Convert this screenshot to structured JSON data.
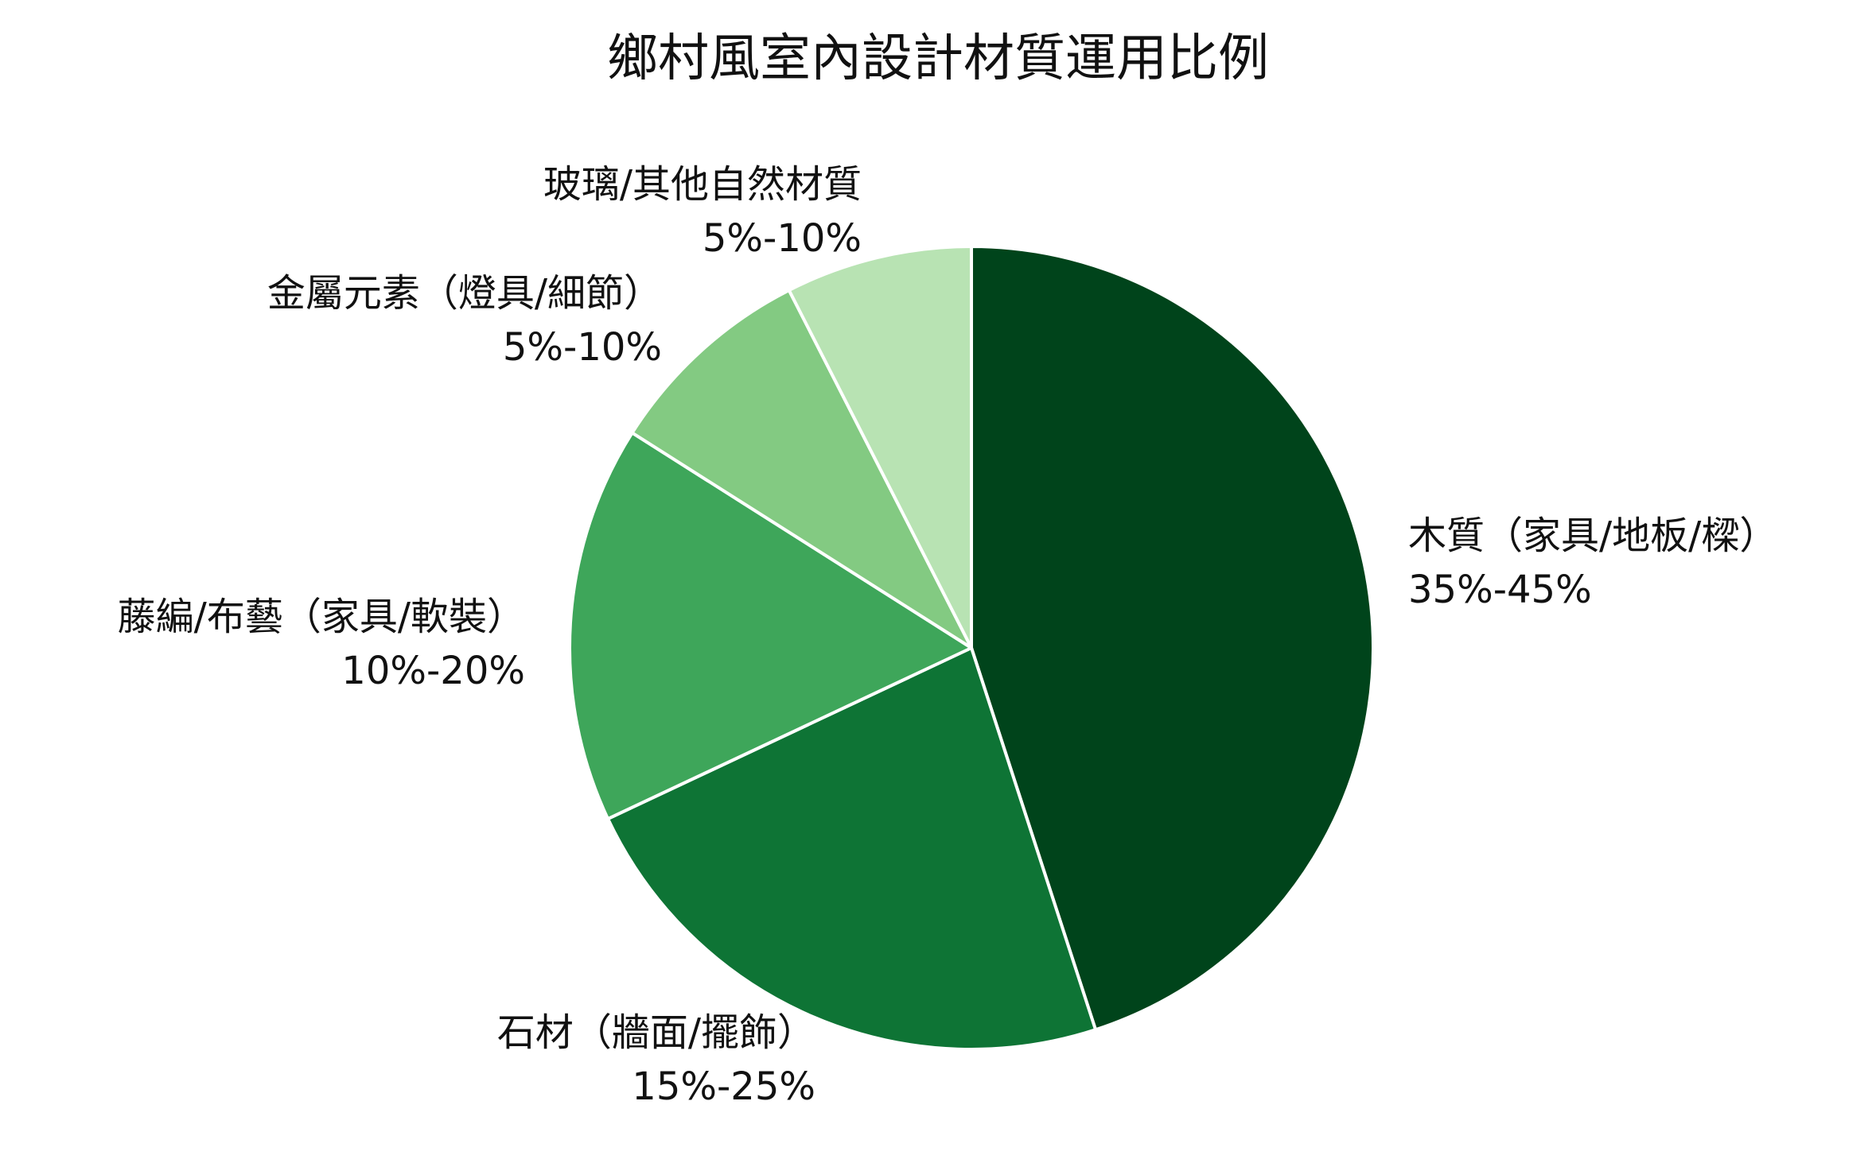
{
  "chart_data": {
    "type": "pie",
    "title": "鄉村風室內設計材質運用比例",
    "slices": [
      {
        "label": "木質（家具/地板/樑）",
        "range": "35%-45%",
        "value": 45,
        "color": "#00441b"
      },
      {
        "label": "石材（牆面/擺飾）",
        "range": "15%-25%",
        "value": 23,
        "color": "#0e7435"
      },
      {
        "label": "藤編/布藝（家具/軟裝）",
        "range": "10%-20%",
        "value": 16,
        "color": "#3ea65a"
      },
      {
        "label": "金屬元素（燈具/細節）",
        "range": "5%-10%",
        "value": 8.5,
        "color": "#83ca82"
      },
      {
        "label": "玻璃/其他自然材質",
        "range": "5%-10%",
        "value": 7.5,
        "color": "#b8e3b3"
      }
    ],
    "start_angle": "top",
    "direction": "clockwise",
    "slice_border_color": "#ffffff"
  }
}
